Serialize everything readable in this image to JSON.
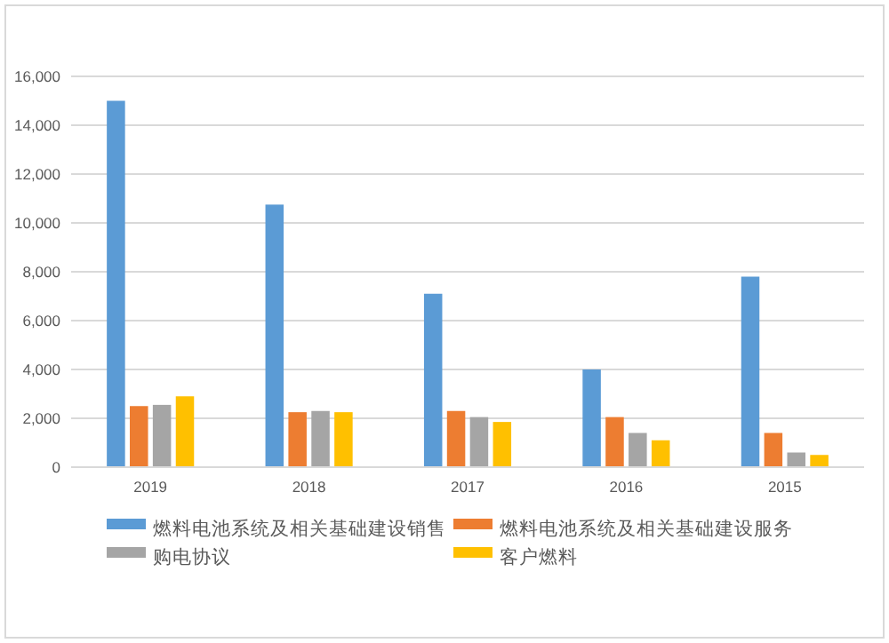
{
  "chart_data": {
    "type": "bar",
    "categories": [
      "2019",
      "2018",
      "2017",
      "2016",
      "2015"
    ],
    "series": [
      {
        "name": "燃料电池系统及相关基础建设销售",
        "color": "#5b9bd5",
        "values": [
          15000,
          10750,
          7100,
          4000,
          7800
        ]
      },
      {
        "name": "燃料电池系统及相关基础建设服务",
        "color": "#ed7d31",
        "values": [
          2500,
          2250,
          2300,
          2050,
          1400
        ]
      },
      {
        "name": "购电协议",
        "color": "#a5a5a5",
        "values": [
          2550,
          2300,
          2050,
          1400,
          600
        ]
      },
      {
        "name": "客户燃料",
        "color": "#ffc000",
        "values": [
          2900,
          2250,
          1850,
          1100,
          500
        ]
      }
    ],
    "ylim": [
      0,
      16000
    ],
    "yticks": [
      {
        "value": 0,
        "label": "0"
      },
      {
        "value": 2000,
        "label": "2,000"
      },
      {
        "value": 4000,
        "label": "4,000"
      },
      {
        "value": 6000,
        "label": "6,000"
      },
      {
        "value": 8000,
        "label": "8,000"
      },
      {
        "value": 10000,
        "label": "10,000"
      },
      {
        "value": 12000,
        "label": "12,000"
      },
      {
        "value": 14000,
        "label": "14,000"
      },
      {
        "value": 16000,
        "label": "16,000"
      }
    ],
    "grid": "y",
    "legend": "bottom"
  }
}
